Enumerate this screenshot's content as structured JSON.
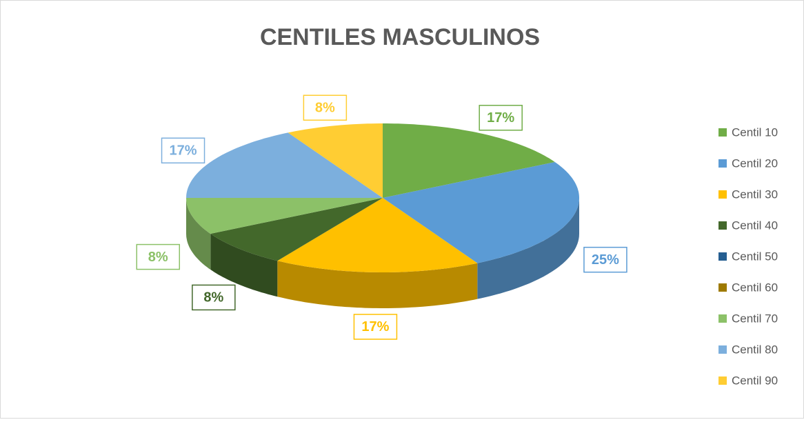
{
  "chart_data": {
    "type": "pie",
    "title": "CENTILES MASCULINOS",
    "categories": [
      "Centil 10",
      "Centil 20",
      "Centil 30",
      "Centil 40",
      "Centil 50",
      "Centil 60",
      "Centil 70",
      "Centil 80",
      "Centil 90"
    ],
    "values": [
      17,
      25,
      17,
      8,
      0,
      0,
      8,
      17,
      8
    ],
    "value_labels": [
      "17%",
      "25%",
      "17%",
      "8%",
      null,
      null,
      "8%",
      "17%",
      "8%"
    ],
    "colors": [
      "#70ad47",
      "#5b9bd5",
      "#ffc000",
      "#43682b",
      "#255e91",
      "#9e7a00",
      "#8cc168",
      "#7cafdd",
      "#ffcd33"
    ],
    "legend": "right"
  }
}
